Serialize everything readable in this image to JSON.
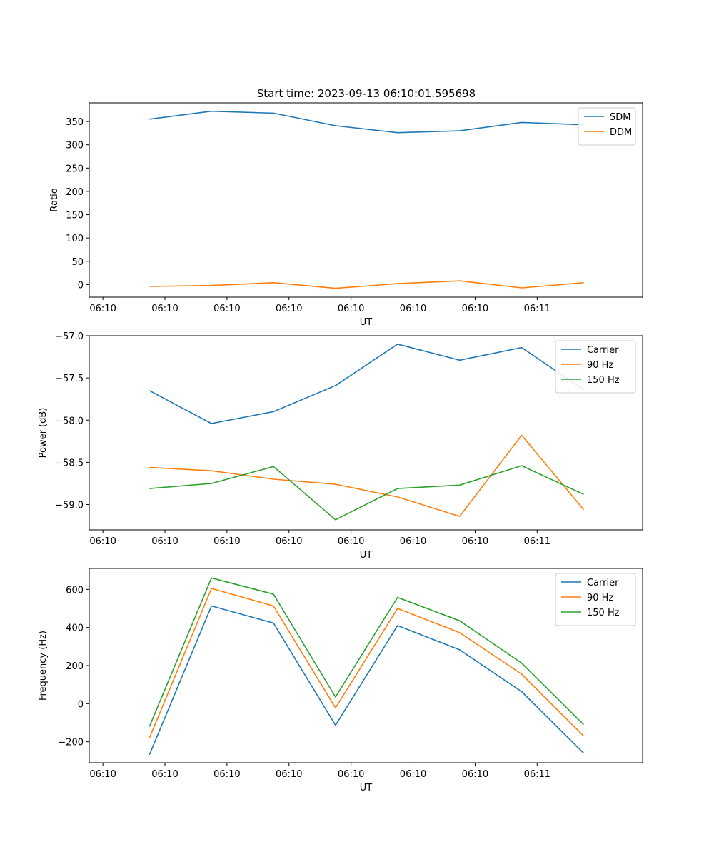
{
  "figure": {
    "title": "Start time: 2023-09-13 06:10:01.595698"
  },
  "chart_data": [
    {
      "type": "line",
      "title": "Start time: 2023-09-13 06:10:01.595698",
      "xlabel": "UT",
      "ylabel": "Ratio",
      "xticks": [
        "06:10",
        "06:10",
        "06:10",
        "06:10",
        "06:10",
        "06:10",
        "06:10",
        "06:11"
      ],
      "xlim": [
        -0.22,
        8.7
      ],
      "ylim": [
        -27,
        390
      ],
      "yticks": [
        0,
        50,
        100,
        150,
        200,
        250,
        300,
        350
      ],
      "ytick_labels": [
        "0",
        "50",
        "100",
        "150",
        "200",
        "250",
        "300",
        "350"
      ],
      "legend": "top-right",
      "x": [
        0.75,
        1.75,
        2.75,
        3.75,
        4.75,
        5.75,
        6.75,
        7.75
      ],
      "series": [
        {
          "name": "SDM",
          "color": "#1f77b4",
          "values": [
            355,
            372,
            368,
            341,
            326,
            330,
            348,
            343
          ]
        },
        {
          "name": "DDM",
          "color": "#ff7f0e",
          "values": [
            -4,
            -2,
            4,
            -8,
            2,
            8,
            -7,
            4
          ]
        }
      ]
    },
    {
      "type": "line",
      "xlabel": "UT",
      "ylabel": "Power (dB)",
      "xticks": [
        "06:10",
        "06:10",
        "06:10",
        "06:10",
        "06:10",
        "06:10",
        "06:10",
        "06:11"
      ],
      "xlim": [
        -0.22,
        8.7
      ],
      "ylim": [
        -59.3,
        -57.0
      ],
      "yticks": [
        -59.0,
        -58.5,
        -58.0,
        -57.5,
        -57.0
      ],
      "ytick_labels": [
        "−59.0",
        "−58.5",
        "−58.0",
        "−57.5",
        "−57.0"
      ],
      "legend": "top-right",
      "x": [
        0.75,
        1.75,
        2.75,
        3.75,
        4.75,
        5.75,
        6.75,
        7.75
      ],
      "series": [
        {
          "name": "Carrier",
          "color": "#1f77b4",
          "values": [
            -57.65,
            -58.04,
            -57.9,
            -57.59,
            -57.1,
            -57.29,
            -57.14,
            -57.64
          ]
        },
        {
          "name": "90 Hz",
          "color": "#ff7f0e",
          "values": [
            -58.56,
            -58.6,
            -58.7,
            -58.76,
            -58.91,
            -59.14,
            -58.18,
            -59.06
          ]
        },
        {
          "name": "150 Hz",
          "color": "#2ca02c",
          "values": [
            -58.81,
            -58.75,
            -58.55,
            -59.18,
            -58.81,
            -58.77,
            -58.54,
            -58.88
          ]
        }
      ]
    },
    {
      "type": "line",
      "xlabel": "UT",
      "ylabel": "Frequency (Hz)",
      "xticks": [
        "06:10",
        "06:10",
        "06:10",
        "06:10",
        "06:10",
        "06:10",
        "06:10",
        "06:11"
      ],
      "xlim": [
        -0.22,
        8.7
      ],
      "ylim": [
        -310,
        710
      ],
      "yticks": [
        -200,
        0,
        200,
        400,
        600
      ],
      "ytick_labels": [
        "−200",
        "0",
        "200",
        "400",
        "600"
      ],
      "legend": "top-right",
      "x": [
        0.75,
        1.75,
        2.75,
        3.75,
        4.75,
        5.75,
        6.75,
        7.75
      ],
      "series": [
        {
          "name": "Carrier",
          "color": "#1f77b4",
          "values": [
            -268,
            513,
            423,
            -113,
            410,
            283,
            63,
            -260
          ]
        },
        {
          "name": "90 Hz",
          "color": "#ff7f0e",
          "values": [
            -180,
            605,
            513,
            -22,
            500,
            373,
            155,
            -170
          ]
        },
        {
          "name": "150 Hz",
          "color": "#2ca02c",
          "values": [
            -120,
            660,
            575,
            35,
            558,
            435,
            213,
            -110
          ]
        }
      ]
    }
  ]
}
